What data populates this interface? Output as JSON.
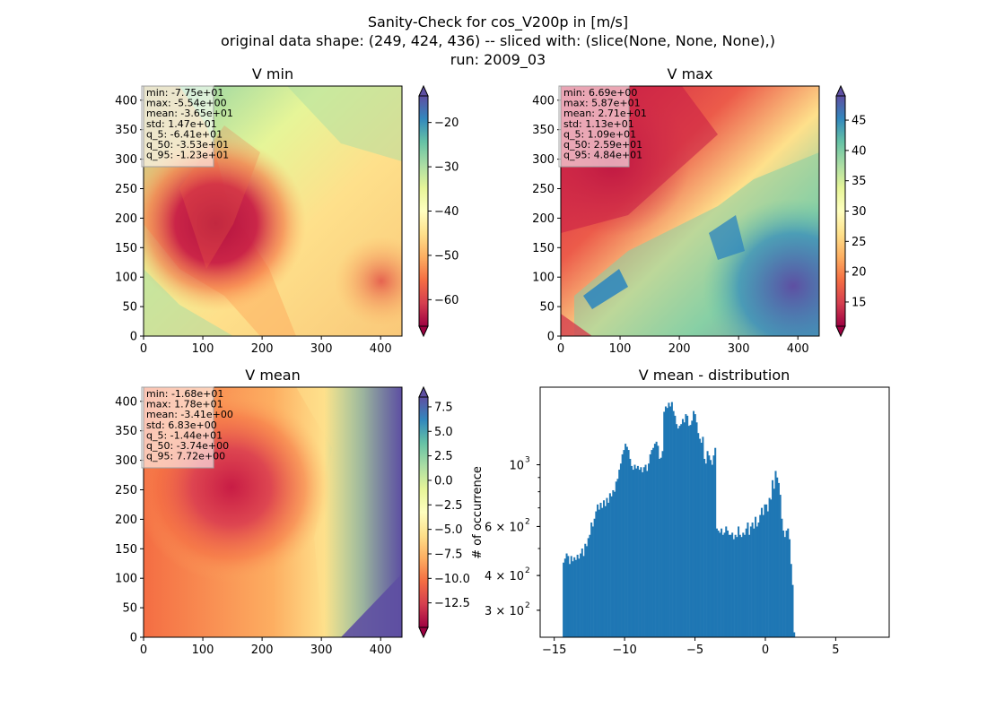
{
  "figure": {
    "title_lines": [
      "Sanity-Check for cos_V200p in [m/s]",
      "original data shape: (249, 424, 436) -- sliced with: (slice(None, None, None),)",
      "run: 2009_03"
    ]
  },
  "chart_data": [
    {
      "type": "heatmap",
      "title": "V min",
      "colormap": "Spectral",
      "xlim": [
        0,
        436
      ],
      "ylim": [
        0,
        424
      ],
      "xticks": [
        "0",
        "100",
        "200",
        "300",
        "400"
      ],
      "yticks": [
        "0",
        "50",
        "100",
        "150",
        "200",
        "250",
        "300",
        "350",
        "400"
      ],
      "colorbar": {
        "range": [
          -66,
          -14
        ],
        "ticks": [
          "−20",
          "−30",
          "−40",
          "−50",
          "−60"
        ],
        "tick_values": [
          -20,
          -30,
          -40,
          -50,
          -60
        ],
        "extend": "both"
      },
      "stats": [
        "min: -7.75e+01",
        "max: -5.54e+00",
        "mean: -3.65e+01",
        "std: 1.47e+01",
        "q_5: -6.41e+01",
        "q_50: -3.53e+01",
        "q_95: -1.23e+01"
      ]
    },
    {
      "type": "heatmap",
      "title": "V max",
      "colormap": "Spectral",
      "xlim": [
        0,
        436
      ],
      "ylim": [
        0,
        424
      ],
      "xticks": [
        "0",
        "100",
        "200",
        "300",
        "400"
      ],
      "yticks": [
        "0",
        "50",
        "100",
        "150",
        "200",
        "250",
        "300",
        "350",
        "400"
      ],
      "colorbar": {
        "range": [
          11,
          49
        ],
        "ticks": [
          "45",
          "40",
          "35",
          "30",
          "25",
          "20",
          "15"
        ],
        "tick_values": [
          45,
          40,
          35,
          30,
          25,
          20,
          15
        ],
        "extend": "both"
      },
      "stats": [
        "min: 6.69e+00",
        "max: 5.87e+01",
        "mean: 2.71e+01",
        "std: 1.13e+01",
        "q_5: 1.09e+01",
        "q_50: 2.59e+01",
        "q_95: 4.84e+01"
      ]
    },
    {
      "type": "heatmap",
      "title": "V mean",
      "colormap": "Spectral",
      "xlim": [
        0,
        436
      ],
      "ylim": [
        0,
        424
      ],
      "xticks": [
        "0",
        "100",
        "200",
        "300",
        "400"
      ],
      "yticks": [
        "0",
        "50",
        "100",
        "150",
        "200",
        "250",
        "300",
        "350",
        "400"
      ],
      "colorbar": {
        "range": [
          -15,
          8.5
        ],
        "ticks": [
          "7.5",
          "5.0",
          "2.5",
          "0.0",
          "−2.5",
          "−5.0",
          "−7.5",
          "−10.0",
          "−12.5"
        ],
        "tick_values": [
          7.5,
          5.0,
          2.5,
          0.0,
          -2.5,
          -5.0,
          -7.5,
          -10.0,
          -12.5
        ],
        "extend": "both"
      },
      "stats": [
        "min: -1.68e+01",
        "max: 1.78e+01",
        "mean: -3.41e+00",
        "std: 6.83e+00",
        "q_5: -1.44e+01",
        "q_50: -3.74e+00",
        "q_95: 7.72e+00"
      ]
    },
    {
      "type": "bar",
      "title": "V mean - distribution",
      "ylabel": "# of occurrence",
      "color": "#1f77b4",
      "yscale": "log",
      "xlim": [
        -16,
        8.8
      ],
      "ylim": [
        240,
        1900
      ],
      "xticks": [
        "−15",
        "−10",
        "−5",
        "0",
        "5"
      ],
      "xtick_values": [
        -15,
        -10,
        -5,
        0,
        5
      ],
      "yticks": [
        {
          "value": 300,
          "base": "3 × 10",
          "exp": "2"
        },
        {
          "value": 400,
          "base": "4 × 10",
          "exp": "2"
        },
        {
          "value": 600,
          "base": "6 × 10",
          "exp": "2"
        },
        {
          "value": 1000,
          "base": "10",
          "exp": "3"
        }
      ],
      "bin_start": -14.4,
      "bin_width": 0.11,
      "values": [
        445,
        460,
        480,
        470,
        440,
        470,
        450,
        465,
        455,
        475,
        460,
        480,
        500,
        470,
        520,
        510,
        545,
        560,
        620,
        600,
        640,
        680,
        720,
        690,
        730,
        700,
        745,
        710,
        760,
        730,
        790,
        770,
        810,
        800,
        870,
        890,
        960,
        1010,
        1090,
        1130,
        1190,
        1160,
        1130,
        1050,
        990,
        960,
        1000,
        970,
        990,
        960,
        980,
        940,
        980,
        1000,
        950,
        1010,
        1090,
        1130,
        1150,
        1190,
        1210,
        1170,
        1050,
        1060,
        1120,
        1550,
        1620,
        1600,
        1670,
        1620,
        1680,
        1560,
        1500,
        1400,
        1350,
        1380,
        1400,
        1460,
        1420,
        1520,
        1500,
        1380,
        1390,
        1440,
        1560,
        1520,
        1420,
        1300,
        1240,
        1200,
        1260,
        1050,
        1010,
        1120,
        1080,
        1040,
        1000,
        1080,
        1150,
        590,
        580,
        570,
        590,
        560,
        570,
        600,
        580,
        560,
        560,
        570,
        540,
        560,
        550,
        600,
        560,
        550,
        570,
        560,
        590,
        620,
        560,
        600,
        620,
        590,
        650,
        600,
        620,
        660,
        700,
        660,
        720,
        720,
        680,
        760,
        750,
        880,
        820,
        950,
        900,
        860,
        780,
        640,
        580,
        550,
        580,
        590,
        540,
        440,
        370,
        250
      ]
    }
  ]
}
